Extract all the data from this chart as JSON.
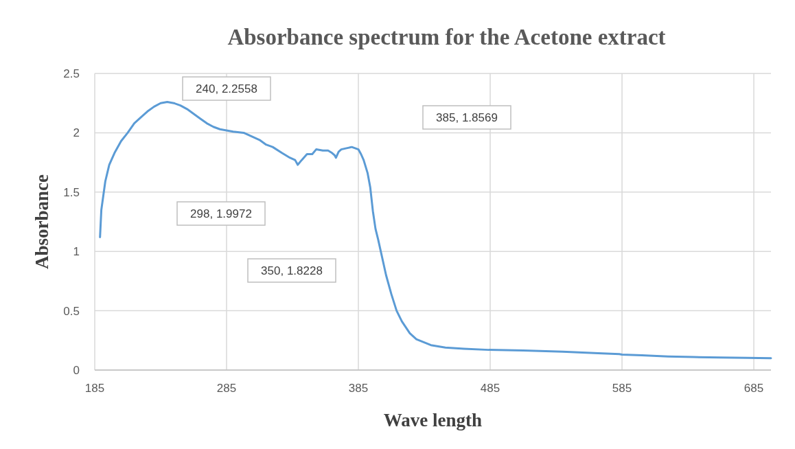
{
  "chart_data": {
    "type": "line",
    "title": "Absorbance spectrum for the Acetone extract",
    "xlabel": "Wave length",
    "ylabel": "Absorbance",
    "xlim": [
      185,
      698
    ],
    "ylim": [
      0,
      2.5
    ],
    "xticks": [
      185,
      285,
      385,
      485,
      585,
      685
    ],
    "yticks": [
      0,
      0.5,
      1,
      1.5,
      2,
      2.5
    ],
    "grid": true,
    "marker": "none",
    "line_style": "solid",
    "series": [
      {
        "color": "#5b9bd5",
        "x": [
          189,
          190,
          193,
          196,
          200,
          205,
          210,
          215,
          220,
          225,
          230,
          235,
          240,
          245,
          250,
          255,
          260,
          265,
          270,
          275,
          280,
          285,
          290,
          298,
          302,
          310,
          315,
          320,
          327,
          333,
          337,
          339,
          342,
          346,
          350,
          353,
          358,
          362,
          365,
          367,
          368,
          370,
          372,
          376,
          380,
          385,
          387,
          389,
          392,
          394,
          396,
          398,
          400,
          402,
          406,
          410,
          414,
          418,
          424,
          429,
          440,
          451,
          465,
          484,
          510,
          540,
          570,
          583,
          585,
          600,
          620,
          639,
          660,
          680,
          698
        ],
        "values": [
          1.12,
          1.35,
          1.59,
          1.73,
          1.83,
          1.93,
          2.0,
          2.08,
          2.13,
          2.18,
          2.22,
          2.25,
          2.26,
          2.25,
          2.23,
          2.2,
          2.16,
          2.12,
          2.08,
          2.05,
          2.03,
          2.02,
          2.01,
          2.0,
          1.98,
          1.94,
          1.9,
          1.88,
          1.83,
          1.79,
          1.77,
          1.73,
          1.77,
          1.82,
          1.82,
          1.86,
          1.85,
          1.85,
          1.83,
          1.81,
          1.79,
          1.84,
          1.86,
          1.87,
          1.88,
          1.86,
          1.82,
          1.77,
          1.66,
          1.54,
          1.34,
          1.19,
          1.1,
          1.0,
          0.8,
          0.64,
          0.5,
          0.41,
          0.31,
          0.26,
          0.21,
          0.19,
          0.18,
          0.17,
          0.165,
          0.155,
          0.14,
          0.135,
          0.13,
          0.125,
          0.115,
          0.11,
          0.105,
          0.102,
          0.1
        ]
      }
    ],
    "annotations": [
      "240, 2.2558",
      "385, 1.8569",
      "298, 1.9972",
      "350, 1.8228"
    ]
  }
}
